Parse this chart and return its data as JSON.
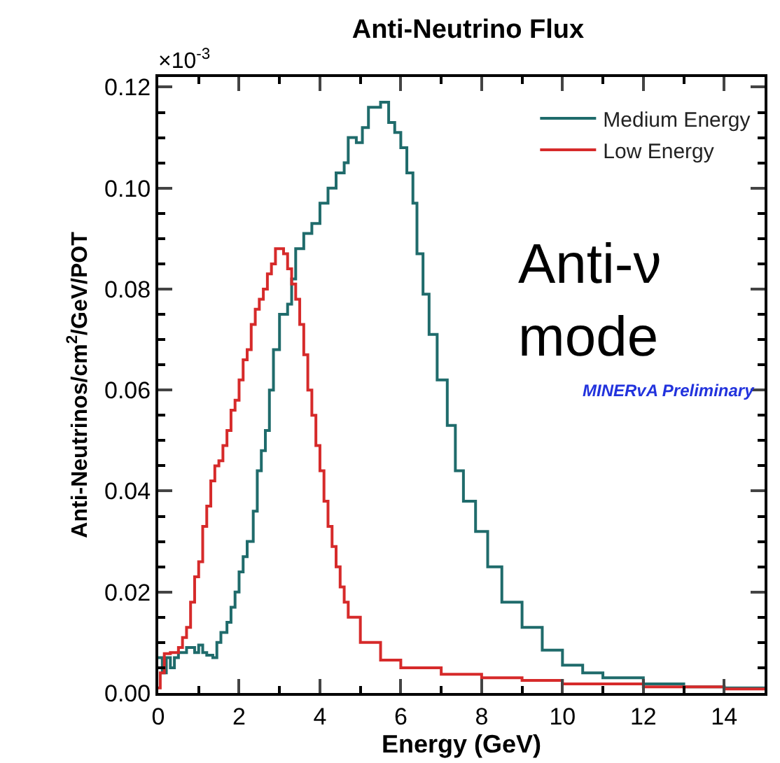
{
  "chart_data": {
    "type": "step",
    "title": "Anti-Neutrino Flux",
    "xlabel": "Energy (GeV)",
    "ylabel": "Anti-Neutrinos/cm$^{2}$/GeV/POT",
    "annotations": [
      "×10$^{-3}$",
      "Anti-ν\nmode",
      "MINERvA Preliminary"
    ],
    "series": [
      {
        "name": "Medium Energy",
        "color": "#1f6b6b",
        "x": [
          0,
          0.1,
          0.2,
          0.3,
          0.4,
          0.5,
          0.7,
          0.9,
          1.0,
          1.1,
          1.2,
          1.35,
          1.45,
          1.55,
          1.7,
          1.8,
          1.9,
          2.0,
          2.1,
          2.2,
          2.35,
          2.45,
          2.55,
          2.65,
          2.75,
          2.85,
          3.0,
          3.2,
          3.3,
          3.4,
          3.6,
          3.8,
          4.0,
          4.2,
          4.4,
          4.6,
          4.7,
          4.9,
          5.05,
          5.2,
          5.5,
          5.7,
          5.85,
          6.0,
          6.15,
          6.3,
          6.4,
          6.55,
          6.7,
          6.9,
          7.15,
          7.35,
          7.55,
          7.85,
          8.15,
          8.5,
          9.0,
          9.5,
          10.0,
          10.5,
          11.0,
          12.0,
          13.0,
          14.0,
          15.0
        ],
        "values": [
          0.007,
          0.004,
          0.007,
          0.005,
          0.007,
          0.008,
          0.009,
          0.008,
          0.0095,
          0.008,
          0.0075,
          0.007,
          0.01,
          0.012,
          0.014,
          0.017,
          0.02,
          0.024,
          0.027,
          0.03,
          0.036,
          0.044,
          0.048,
          0.052,
          0.06,
          0.068,
          0.075,
          0.077,
          0.082,
          0.088,
          0.091,
          0.093,
          0.097,
          0.1,
          0.103,
          0.105,
          0.11,
          0.109,
          0.112,
          0.116,
          0.117,
          0.113,
          0.111,
          0.108,
          0.103,
          0.097,
          0.087,
          0.079,
          0.071,
          0.062,
          0.053,
          0.044,
          0.038,
          0.032,
          0.025,
          0.018,
          0.013,
          0.0085,
          0.0055,
          0.004,
          0.003,
          0.0018,
          0.0012,
          0.001,
          0.001
        ]
      },
      {
        "name": "Low Energy",
        "color": "#d62a2a",
        "x": [
          0,
          0.05,
          0.15,
          0.3,
          0.5,
          0.6,
          0.7,
          0.8,
          0.9,
          1.0,
          1.1,
          1.2,
          1.3,
          1.4,
          1.5,
          1.6,
          1.7,
          1.8,
          1.9,
          2.0,
          2.1,
          2.2,
          2.3,
          2.4,
          2.5,
          2.6,
          2.7,
          2.8,
          2.9,
          3.0,
          3.1,
          3.2,
          3.3,
          3.4,
          3.5,
          3.6,
          3.7,
          3.8,
          3.9,
          4.0,
          4.1,
          4.2,
          4.3,
          4.4,
          4.5,
          4.6,
          4.7,
          5.0,
          5.5,
          6.0,
          7.0,
          8.0,
          9.0,
          10.0,
          12.0,
          14.0,
          15.0
        ],
        "values": [
          0.001,
          0.004,
          0.0078,
          0.008,
          0.009,
          0.011,
          0.013,
          0.018,
          0.023,
          0.026,
          0.033,
          0.037,
          0.042,
          0.045,
          0.046,
          0.049,
          0.052,
          0.056,
          0.058,
          0.062,
          0.066,
          0.068,
          0.073,
          0.076,
          0.078,
          0.08,
          0.083,
          0.085,
          0.088,
          0.088,
          0.087,
          0.084,
          0.081,
          0.078,
          0.073,
          0.067,
          0.06,
          0.055,
          0.049,
          0.044,
          0.038,
          0.033,
          0.029,
          0.025,
          0.021,
          0.018,
          0.015,
          0.01,
          0.0065,
          0.005,
          0.0037,
          0.003,
          0.0025,
          0.0018,
          0.0012,
          0.0008,
          0.0007
        ]
      }
    ],
    "xlim": [
      0,
      15
    ],
    "ylim": [
      0,
      0.122
    ],
    "xticks": [
      0,
      2,
      4,
      6,
      8,
      10,
      12,
      14
    ],
    "yticks": [
      {
        "value": 0,
        "label": "0.00"
      },
      {
        "value": 0.02,
        "label": "0.02"
      },
      {
        "value": 0.04,
        "label": "0.04"
      },
      {
        "value": 0.06,
        "label": "0.06"
      },
      {
        "value": 0.08,
        "label": "0.08"
      },
      {
        "value": 0.1,
        "label": "0.10"
      },
      {
        "value": 0.12,
        "label": "0.12"
      }
    ],
    "legend": "top right",
    "marker": "none",
    "line_style": "solid"
  }
}
